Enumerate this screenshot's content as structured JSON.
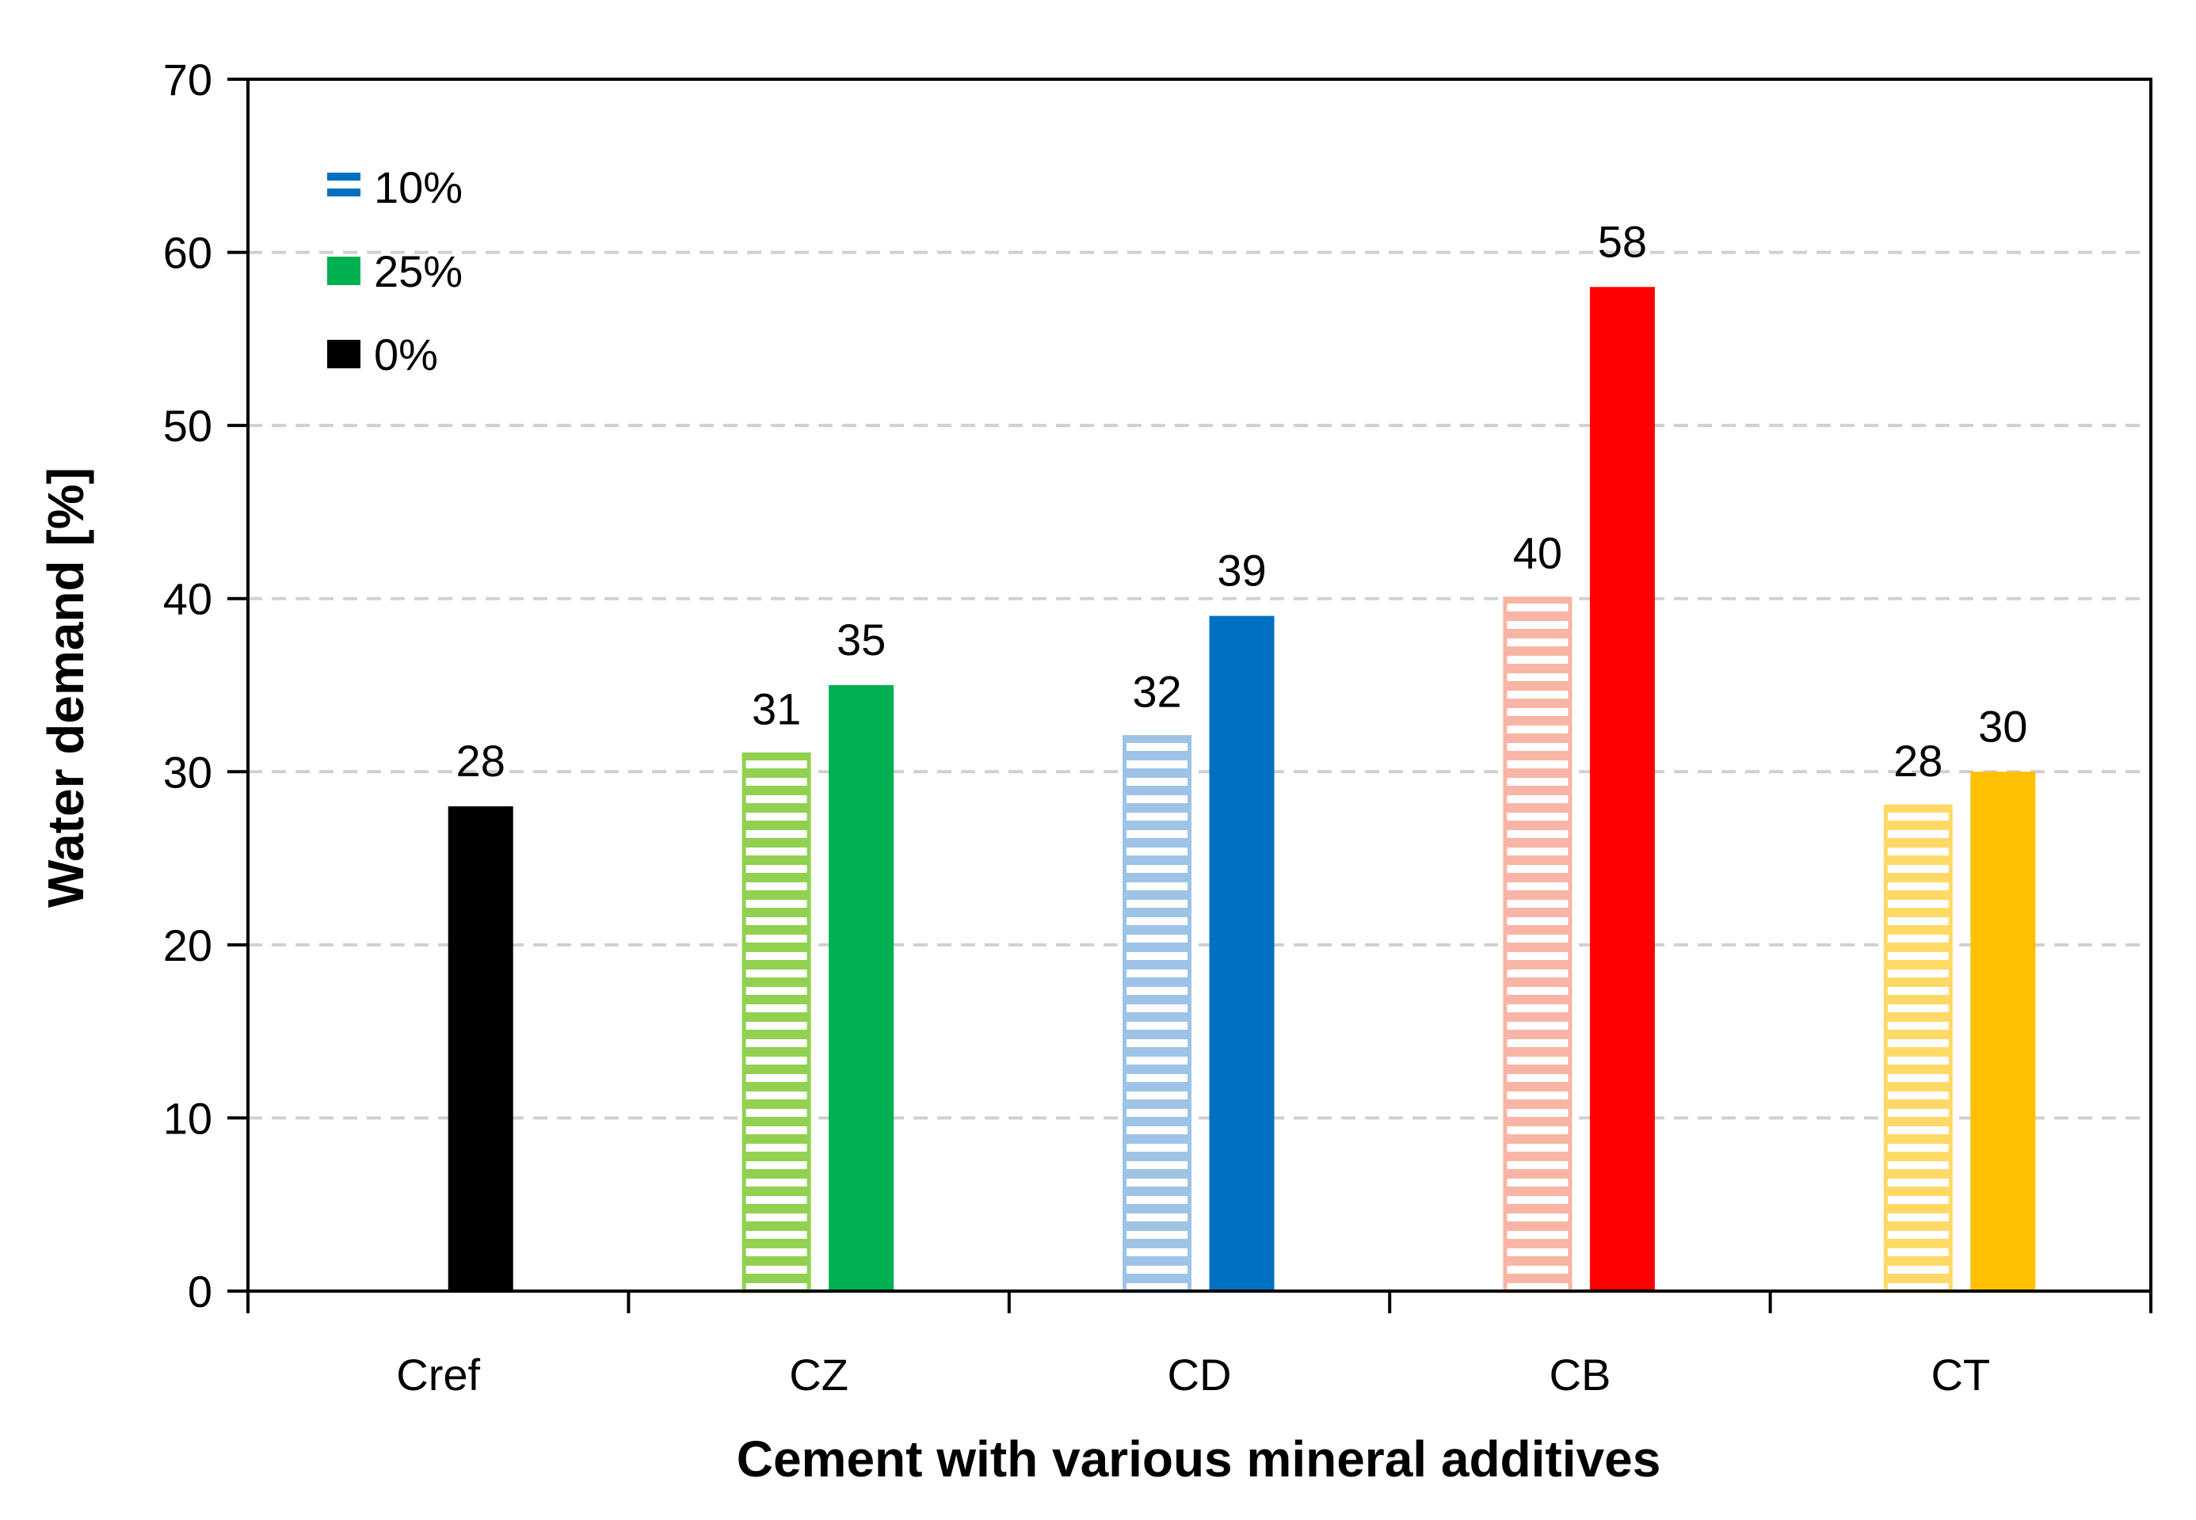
{
  "chart_data": {
    "type": "bar",
    "title": "",
    "xlabel": "Cement with various mineral additives",
    "ylabel": "Water demand [%]",
    "ylim": [
      0,
      70
    ],
    "yticks": [
      0,
      10,
      20,
      30,
      40,
      50,
      60,
      70
    ],
    "grid": "horizontal dashed",
    "categories": [
      "Cref",
      "CZ",
      "CD",
      "CB",
      "CT"
    ],
    "legend_position": "top-left",
    "legend": [
      {
        "label": "10%",
        "style": "hatched",
        "color": "#0070C0"
      },
      {
        "label": "25%",
        "style": "solid",
        "color": "#00B050"
      },
      {
        "label": "0%",
        "style": "solid",
        "color": "#000000"
      }
    ],
    "series": [
      {
        "name": "0%",
        "style": "solid",
        "values": [
          28,
          null,
          null,
          null,
          null
        ],
        "colors": [
          "#000000",
          null,
          null,
          null,
          null
        ]
      },
      {
        "name": "10%",
        "style": "hatched",
        "values": [
          null,
          31,
          32,
          40,
          28
        ],
        "colors": [
          null,
          "#92D050",
          "#9DC3E6",
          "#F8B4A4",
          "#FFD966"
        ]
      },
      {
        "name": "25%",
        "style": "solid",
        "values": [
          null,
          35,
          39,
          58,
          30
        ],
        "colors": [
          null,
          "#00B050",
          "#0070C0",
          "#FF0000",
          "#FFC000"
        ]
      }
    ]
  }
}
